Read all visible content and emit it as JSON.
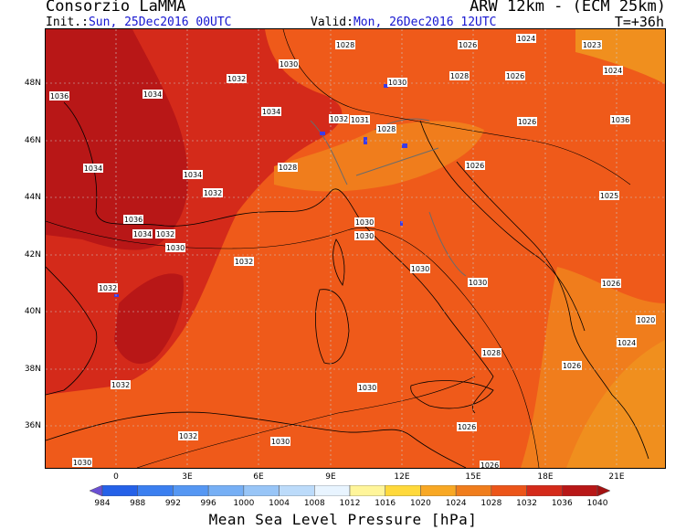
{
  "header": {
    "producer": "Consorzio LaMMA",
    "model": "ARW 12km - (ECM 25km)",
    "init_prefix": "Init.:",
    "init_value": "Sun, 25Dec2016 00UTC",
    "valid_prefix": "Valid:",
    "valid_value": "Mon, 26Dec2016 12UTC",
    "forecast_step": "T=+36h"
  },
  "map": {
    "lat_labels": [
      "48N",
      "46N",
      "44N",
      "42N",
      "40N",
      "38N",
      "36N"
    ],
    "lon_labels": [
      "0",
      "3E",
      "6E",
      "9E",
      "12E",
      "15E",
      "18E",
      "21E"
    ],
    "isobar_labels": [
      "1028",
      "1026",
      "1024",
      "1023",
      "1030",
      "1024",
      "1032",
      "1036",
      "1034",
      "1030",
      "1028",
      "1026",
      "1034",
      "1032",
      "1031",
      "1028",
      "1026",
      "1036",
      "1034",
      "1028",
      "1026",
      "1034",
      "1032",
      "1025",
      "1036",
      "1034",
      "1032",
      "1030",
      "1030",
      "1032",
      "1030",
      "1030",
      "1030",
      "1026",
      "1032",
      "1020",
      "1024",
      "1028",
      "1026",
      "1032",
      "1030",
      "1026",
      "1032",
      "1030",
      "1030",
      "1026"
    ],
    "colors": {
      "p1024": "#f08f1e",
      "p1028": "#ef5a1a",
      "p1032": "#d42a1a",
      "p1036": "#b81717",
      "coast": "#000000",
      "border": "#6b6b6b",
      "lakes": "#3a3ae6"
    }
  },
  "legend": {
    "title": "Mean Sea Level Pressure [hPa]",
    "ticks": [
      "984",
      "988",
      "992",
      "996",
      "1000",
      "1004",
      "1008",
      "1012",
      "1016",
      "1020",
      "1024",
      "1028",
      "1032",
      "1036",
      "1040"
    ],
    "colors": [
      "#6a4fd3",
      "#2561e8",
      "#3b7ff0",
      "#5597f3",
      "#76aff5",
      "#98c5f7",
      "#bcdbfa",
      "#e8f4ff",
      "#fff59a",
      "#ffd93b",
      "#f8a824",
      "#f07d1c",
      "#ec5519",
      "#d42a1a",
      "#b81717",
      "#a31111"
    ]
  }
}
